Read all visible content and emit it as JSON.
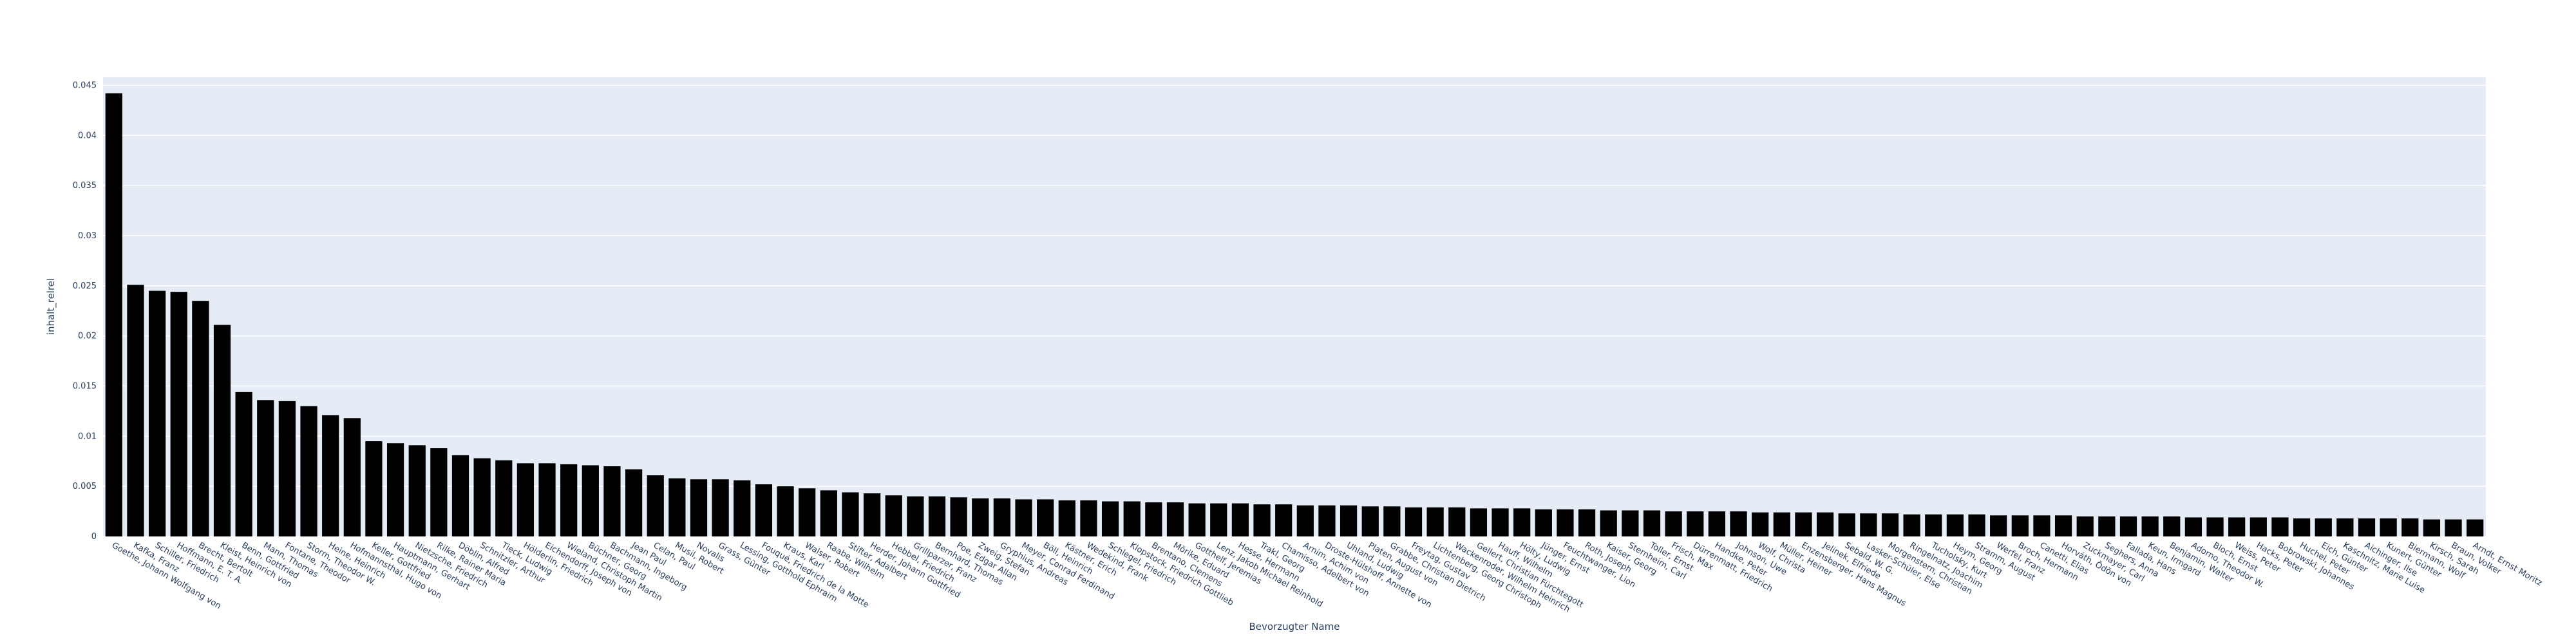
{
  "chart_data": {
    "type": "bar",
    "xlabel": "Bevorzugter Name",
    "ylabel": "inhalt_relrel",
    "ylim": [
      0,
      0.0458
    ],
    "yticks": [
      0,
      0.005,
      0.01,
      0.015,
      0.02,
      0.025,
      0.03,
      0.035,
      0.04,
      0.045
    ],
    "ytick_labels": [
      "0",
      "0.005",
      "0.01",
      "0.015",
      "0.02",
      "0.025",
      "0.03",
      "0.035",
      "0.04",
      "0.045"
    ],
    "grid": true,
    "bar_color": "#000000",
    "plot_bg": "#e5ecf6",
    "categories": [
      "Goethe, Johann Wolfgang von",
      "Kafka, Franz",
      "Schiller, Friedrich",
      "Hoffmann, E. T. A.",
      "Brecht, Bertolt",
      "Kleist, Heinrich von",
      "Benn, Gottfried",
      "Mann, Thomas",
      "Fontane, Theodor",
      "Storm, Theodor W.",
      "Heine, Heinrich",
      "Hofmannsthal, Hugo von",
      "Keller, Gottfried",
      "Hauptmann, Gerhart",
      "Nietzsche, Friedrich",
      "Rilke, Rainer Maria",
      "Döblin, Alfred",
      "Schnitzler, Arthur",
      "Tieck, Ludwig",
      "Hölderlin, Friedrich",
      "Eichendorff, Joseph von",
      "Wieland, Christoph Martin",
      "Büchner, Georg",
      "Bachmann, Ingeborg",
      "Jean Paul",
      "Celan, Paul",
      "Musil, Robert",
      "Novalis",
      "Grass, Günter",
      "Lessing, Gotthold Ephraim",
      "Fouqué, Friedrich de la Motte",
      "Kraus, Karl",
      "Walser, Robert",
      "Raabe, Wilhelm",
      "Stifter, Adalbert",
      "Herder, Johann Gottfried",
      "Hebbel, Friedrich",
      "Grillparzer, Franz",
      "Bernhard, Thomas",
      "Poe, Edgar Allan",
      "Zweig, Stefan",
      "Gryphius, Andreas",
      "Meyer, Conrad Ferdinand",
      "Böll, Heinrich",
      "Kästner, Erich",
      "Wedekind, Frank",
      "Schlegel, Friedrich",
      "Klopstock, Friedrich Gottlieb",
      "Brentano, Clemens",
      "Mörike, Eduard",
      "Gotthelf, Jeremias",
      "Lenz, Jakob Michael Reinhold",
      "Hesse, Hermann",
      "Trakl, Georg",
      "Chamisso, Adelbert von",
      "Arnim, Achim von",
      "Droste-Hülshoff, Annette von",
      "Uhland, Ludwig",
      "Platen, August von",
      "Grabbe, Christian Dietrich",
      "Freytag, Gustav",
      "Lichtenberg, Georg Christoph",
      "Wackenroder, Wilhelm Heinrich",
      "Gellert, Christian Fürchtegott",
      "Hauff, Wilhelm",
      "Hölty, Ludwig",
      "Jünger, Ernst",
      "Feuchtwanger, Lion",
      "Roth, Joseph",
      "Kaiser, Georg",
      "Sternheim, Carl",
      "Toller, Ernst",
      "Frisch, Max",
      "Dürrenmatt, Friedrich",
      "Handke, Peter",
      "Johnson, Uwe",
      "Wolf, Christa",
      "Müller, Heiner",
      "Enzensberger, Hans Magnus",
      "Jelinek, Elfriede",
      "Sebald, W. G.",
      "Lasker-Schüler, Else",
      "Morgenstern, Christian",
      "Ringelnatz, Joachim",
      "Tucholsky, Kurt",
      "Heym, Georg",
      "Stramm, August",
      "Werfel, Franz",
      "Broch, Hermann",
      "Canetti, Elias",
      "Horváth, Ödön von",
      "Zuckmayer, Carl",
      "Seghers, Anna",
      "Fallada, Hans",
      "Keun, Irmgard",
      "Benjamin, Walter",
      "Adorno, Theodor W.",
      "Bloch, Ernst",
      "Weiss, Peter",
      "Hacks, Peter",
      "Bobrowski, Johannes",
      "Huchel, Peter",
      "Eich, Günter",
      "Kaschnitz, Marie Luise",
      "Aichinger, Ilse",
      "Kunert, Günter",
      "Biermann, Wolf",
      "Kirsch, Sarah",
      "Braun, Volker",
      "Arndt, Ernst Moritz"
    ],
    "values": [
      0.0442,
      0.0251,
      0.0245,
      0.0244,
      0.0235,
      0.0211,
      0.0144,
      0.0136,
      0.0135,
      0.013,
      0.0121,
      0.0118,
      0.0095,
      0.0093,
      0.0091,
      0.0088,
      0.0081,
      0.0078,
      0.0076,
      0.0073,
      0.0073,
      0.0072,
      0.0071,
      0.007,
      0.0067,
      0.0061,
      0.0058,
      0.0057,
      0.0057,
      0.0056,
      0.0052,
      0.005,
      0.0048,
      0.0046,
      0.0044,
      0.0043,
      0.0041,
      0.004,
      0.004,
      0.0039,
      0.0038,
      0.0038,
      0.0037,
      0.0037,
      0.0036,
      0.0036,
      0.0035,
      0.0035,
      0.0034,
      0.0034,
      0.0033,
      0.0033,
      0.0033,
      0.0032,
      0.0032,
      0.0031,
      0.0031,
      0.0031,
      0.003,
      0.003,
      0.0029,
      0.0029,
      0.0029,
      0.0028,
      0.0028,
      0.0028,
      0.0027,
      0.0027,
      0.0027,
      0.0026,
      0.0026,
      0.0026,
      0.0025,
      0.0025,
      0.0025,
      0.0025,
      0.0024,
      0.0024,
      0.0024,
      0.0024,
      0.0023,
      0.0023,
      0.0023,
      0.0022,
      0.0022,
      0.0022,
      0.0022,
      0.0021,
      0.0021,
      0.0021,
      0.0021,
      0.002,
      0.002,
      0.002,
      0.002,
      0.002,
      0.0019,
      0.0019,
      0.0019,
      0.0019,
      0.0019,
      0.0018,
      0.0018,
      0.0018,
      0.0018,
      0.0018,
      0.0018,
      0.0017,
      0.0017,
      0.0017
    ]
  }
}
